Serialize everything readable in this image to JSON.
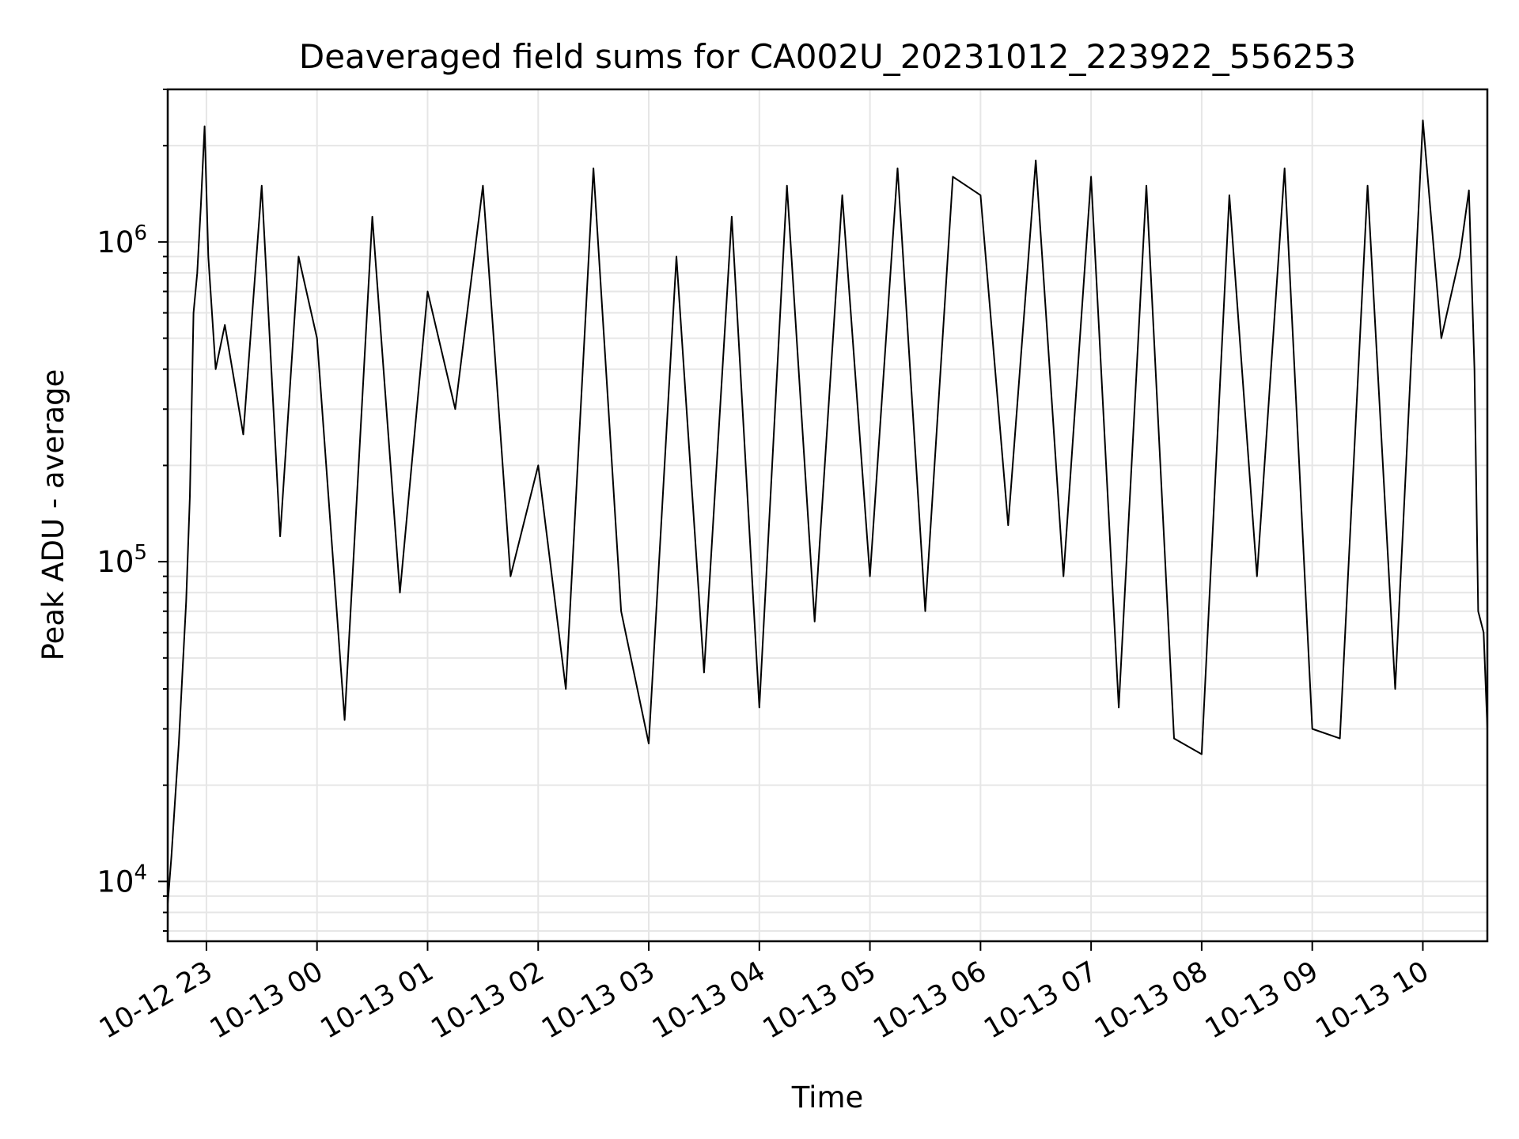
{
  "chart_data": {
    "type": "line",
    "title": "Deaveraged field sums for CA002U_20231012_223922_556253",
    "xlabel": "Time",
    "ylabel": "Peak ADU - average",
    "yscale": "log",
    "ylim": [
      6500,
      3000000
    ],
    "xlim": [
      "2023-10-12 22:39",
      "2023-10-13 10:35"
    ],
    "grid": true,
    "line_color": "#000000",
    "grid_color": "#e6e6e6",
    "x_ticks": [
      {
        "label": "10-12 23",
        "time": "2023-10-12 23:00"
      },
      {
        "label": "10-13 00",
        "time": "2023-10-13 00:00"
      },
      {
        "label": "10-13 01",
        "time": "2023-10-13 01:00"
      },
      {
        "label": "10-13 02",
        "time": "2023-10-13 02:00"
      },
      {
        "label": "10-13 03",
        "time": "2023-10-13 03:00"
      },
      {
        "label": "10-13 04",
        "time": "2023-10-13 04:00"
      },
      {
        "label": "10-13 05",
        "time": "2023-10-13 05:00"
      },
      {
        "label": "10-13 06",
        "time": "2023-10-13 06:00"
      },
      {
        "label": "10-13 07",
        "time": "2023-10-13 07:00"
      },
      {
        "label": "10-13 08",
        "time": "2023-10-13 08:00"
      },
      {
        "label": "10-13 09",
        "time": "2023-10-13 09:00"
      },
      {
        "label": "10-13 10",
        "time": "2023-10-13 10:00"
      }
    ],
    "y_ticks": [
      {
        "value": 10000,
        "base": "10",
        "exp": "4"
      },
      {
        "value": 100000,
        "base": "10",
        "exp": "5"
      },
      {
        "value": 1000000,
        "base": "10",
        "exp": "6"
      }
    ],
    "series": [
      {
        "x": [
          "2023-10-12 22:39",
          "2023-10-12 22:41",
          "2023-10-12 22:43",
          "2023-10-12 22:45",
          "2023-10-12 22:47",
          "2023-10-12 22:49",
          "2023-10-12 22:51",
          "2023-10-12 22:53",
          "2023-10-12 22:55",
          "2023-10-12 22:57",
          "2023-10-12 22:59",
          "2023-10-12 23:01",
          "2023-10-12 23:05",
          "2023-10-12 23:10",
          "2023-10-12 23:20",
          "2023-10-12 23:30",
          "2023-10-12 23:40",
          "2023-10-12 23:50",
          "2023-10-13 00:00",
          "2023-10-13 00:15",
          "2023-10-13 00:30",
          "2023-10-13 00:45",
          "2023-10-13 01:00",
          "2023-10-13 01:15",
          "2023-10-13 01:30",
          "2023-10-13 01:45",
          "2023-10-13 02:00",
          "2023-10-13 02:15",
          "2023-10-13 02:30",
          "2023-10-13 02:45",
          "2023-10-13 03:00",
          "2023-10-13 03:15",
          "2023-10-13 03:30",
          "2023-10-13 03:45",
          "2023-10-13 04:00",
          "2023-10-13 04:15",
          "2023-10-13 04:30",
          "2023-10-13 04:45",
          "2023-10-13 05:00",
          "2023-10-13 05:15",
          "2023-10-13 05:30",
          "2023-10-13 05:45",
          "2023-10-13 06:00",
          "2023-10-13 06:15",
          "2023-10-13 06:30",
          "2023-10-13 06:45",
          "2023-10-13 07:00",
          "2023-10-13 07:15",
          "2023-10-13 07:30",
          "2023-10-13 07:45",
          "2023-10-13 08:00",
          "2023-10-13 08:15",
          "2023-10-13 08:30",
          "2023-10-13 08:45",
          "2023-10-13 09:00",
          "2023-10-13 09:15",
          "2023-10-13 09:30",
          "2023-10-13 09:45",
          "2023-10-13 10:00",
          "2023-10-13 10:10",
          "2023-10-13 10:20",
          "2023-10-13 10:25",
          "2023-10-13 10:28",
          "2023-10-13 10:30",
          "2023-10-13 10:33",
          "2023-10-13 10:35"
        ],
        "values": [
          8500,
          12000,
          18000,
          27000,
          45000,
          75000,
          160000,
          600000,
          800000,
          1300000,
          2300000,
          900000,
          400000,
          550000,
          250000,
          1500000,
          120000,
          900000,
          500000,
          32000,
          1200000,
          80000,
          700000,
          300000,
          1500000,
          90000,
          200000,
          40000,
          1700000,
          70000,
          27000,
          900000,
          45000,
          1200000,
          35000,
          1500000,
          65000,
          1400000,
          90000,
          1700000,
          70000,
          1600000,
          1400000,
          130000,
          1800000,
          90000,
          1600000,
          35000,
          1500000,
          28000,
          25000,
          1400000,
          90000,
          1700000,
          30000,
          28000,
          1500000,
          40000,
          2400000,
          500000,
          900000,
          1450000,
          400000,
          70000,
          60000,
          30000
        ]
      }
    ]
  }
}
